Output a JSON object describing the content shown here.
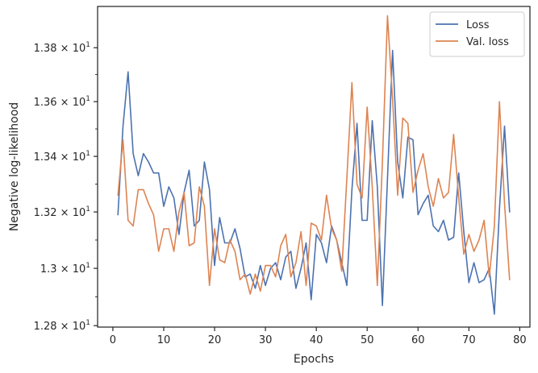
{
  "chart_data": {
    "type": "line",
    "xlabel": "Epochs",
    "ylabel": "Negative log-likelihood",
    "xlim": [
      -3,
      82
    ],
    "ylim": [
      12.795,
      13.955
    ],
    "y_scale": "log",
    "x_ticks": [
      0,
      10,
      20,
      30,
      40,
      50,
      60,
      70,
      80
    ],
    "x_tick_labels": [
      "0",
      "10",
      "20",
      "30",
      "40",
      "50",
      "60",
      "70",
      "80"
    ],
    "y_ticks": [
      12.8,
      13.0,
      13.2,
      13.4,
      13.6,
      13.8
    ],
    "y_tick_mantissas": [
      "1.28",
      "1.3",
      "1.32",
      "1.34",
      "1.36",
      "1.38"
    ],
    "y_tick_base": "10",
    "y_tick_exponent": "1",
    "grid": false,
    "legend_position": "top-right",
    "x": [
      1,
      2,
      3,
      4,
      5,
      6,
      7,
      8,
      9,
      10,
      11,
      12,
      13,
      14,
      15,
      16,
      17,
      18,
      19,
      20,
      21,
      22,
      23,
      24,
      25,
      26,
      27,
      28,
      29,
      30,
      31,
      32,
      33,
      34,
      35,
      36,
      37,
      38,
      39,
      40,
      41,
      42,
      43,
      44,
      45,
      46,
      47,
      48,
      49,
      50,
      51,
      52,
      53,
      54,
      55,
      56,
      57,
      58,
      59,
      60,
      61,
      62,
      63,
      64,
      65,
      66,
      67,
      68,
      69,
      70,
      71,
      72,
      73,
      74,
      75,
      76,
      77,
      78
    ],
    "series": [
      {
        "name": "Loss",
        "color": "#4c72b0",
        "values": [
          13.19,
          13.51,
          13.71,
          13.41,
          13.33,
          13.41,
          13.38,
          13.34,
          13.34,
          13.22,
          13.29,
          13.25,
          13.12,
          13.27,
          13.35,
          13.15,
          13.17,
          13.38,
          13.28,
          13.01,
          13.18,
          13.09,
          13.09,
          13.14,
          13.07,
          12.97,
          12.98,
          12.93,
          13.01,
          12.94,
          13.0,
          13.02,
          12.96,
          13.04,
          13.06,
          12.93,
          13.0,
          13.09,
          12.89,
          13.12,
          13.09,
          13.02,
          13.15,
          13.1,
          13.02,
          12.94,
          13.28,
          13.52,
          13.17,
          13.17,
          13.53,
          13.29,
          12.87,
          13.32,
          13.79,
          13.38,
          13.25,
          13.47,
          13.46,
          13.19,
          13.23,
          13.26,
          13.15,
          13.13,
          13.17,
          13.1,
          13.11,
          13.34,
          13.13,
          12.95,
          13.02,
          12.95,
          12.96,
          13.0,
          12.84,
          13.21,
          13.51,
          13.2
        ]
      },
      {
        "name": "Val. loss",
        "color": "#dd8452",
        "values": [
          13.26,
          13.46,
          13.17,
          13.15,
          13.28,
          13.28,
          13.23,
          13.19,
          13.06,
          13.14,
          13.14,
          13.06,
          13.2,
          13.27,
          13.08,
          13.09,
          13.29,
          13.22,
          12.94,
          13.14,
          13.03,
          13.02,
          13.1,
          13.06,
          12.96,
          12.98,
          12.91,
          12.98,
          12.92,
          13.01,
          13.01,
          12.97,
          13.08,
          13.12,
          12.97,
          13.02,
          13.13,
          12.94,
          13.16,
          13.15,
          13.1,
          13.26,
          13.14,
          13.1,
          12.99,
          13.32,
          13.67,
          13.3,
          13.25,
          13.58,
          13.29,
          12.94,
          13.38,
          13.92,
          13.61,
          13.26,
          13.54,
          13.52,
          13.27,
          13.35,
          13.41,
          13.29,
          13.22,
          13.32,
          13.25,
          13.27,
          13.48,
          13.25,
          13.05,
          13.12,
          13.06,
          13.1,
          13.17,
          12.97,
          13.15,
          13.6,
          13.23,
          12.96
        ]
      }
    ]
  }
}
